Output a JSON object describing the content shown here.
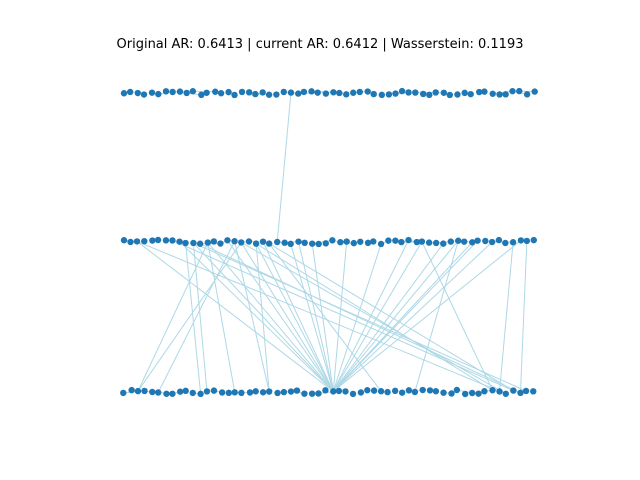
{
  "figure": {
    "title": "Original AR: 0.6413 | current AR: 0.6412 | Wasserstein: 0.1193"
  },
  "colors": {
    "node": "#1f77b4",
    "edge": "#add8e6"
  },
  "graph": {
    "layers": 3,
    "nodes_per_layer": 60
  }
}
